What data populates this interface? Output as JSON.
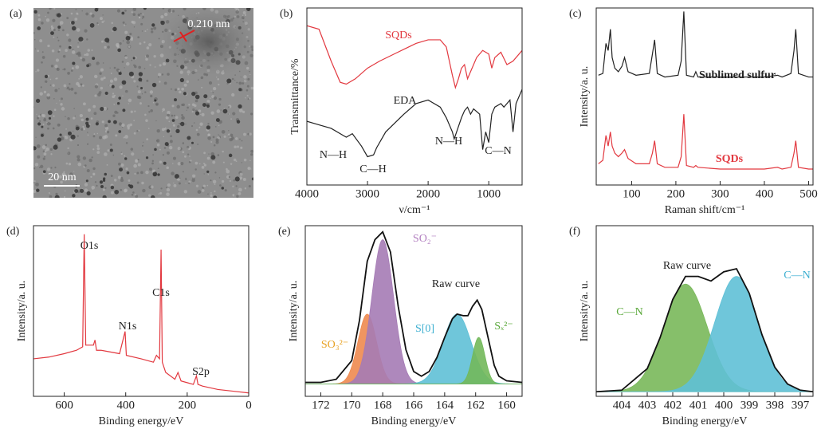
{
  "panel_a": {
    "panel": "(a)",
    "lattice": "0.210 nm",
    "scale_bar": "20 nm"
  },
  "chart_data": [
    {
      "type": "line",
      "panel": "(b)",
      "ylabel": "Transmittance/%",
      "xlabel": "ν/cm⁻¹",
      "xlim": [
        4000,
        450
      ],
      "xticks": [
        4000,
        3000,
        2000,
        1000
      ],
      "ylim": [
        0,
        100
      ],
      "series": [
        {
          "name": "SQDs",
          "color": "#e2383f",
          "x": [
            4000,
            3800,
            3600,
            3450,
            3350,
            3200,
            3000,
            2800,
            2500,
            2200,
            2000,
            1800,
            1700,
            1600,
            1550,
            1500,
            1450,
            1400,
            1350,
            1300,
            1200,
            1100,
            1000,
            950,
            900,
            800,
            700,
            600,
            450
          ],
          "values": [
            90,
            88,
            70,
            58,
            57,
            60,
            66,
            70,
            75,
            80,
            82,
            82,
            78,
            62,
            55,
            60,
            66,
            68,
            60,
            64,
            72,
            76,
            74,
            66,
            72,
            75,
            68,
            70,
            76
          ]
        },
        {
          "name": "EDA",
          "color": "#222222",
          "x": [
            4000,
            3800,
            3600,
            3400,
            3350,
            3250,
            3100,
            3000,
            2900,
            2850,
            2700,
            2400,
            2200,
            2000,
            1800,
            1700,
            1600,
            1570,
            1500,
            1450,
            1400,
            1350,
            1300,
            1250,
            1150,
            1100,
            1050,
            1000,
            950,
            900,
            800,
            750,
            650,
            600,
            550,
            450
          ],
          "values": [
            36,
            34,
            32,
            28,
            27,
            29,
            22,
            16,
            17,
            21,
            30,
            40,
            46,
            48,
            44,
            38,
            30,
            26,
            33,
            38,
            42,
            44,
            40,
            43,
            40,
            20,
            30,
            24,
            40,
            44,
            46,
            44,
            48,
            30,
            46,
            54
          ]
        }
      ],
      "annotations": [
        {
          "text": "N—H",
          "color": "#222222"
        },
        {
          "text": "C—H",
          "color": "#222222"
        },
        {
          "text": "N—H",
          "color": "#222222"
        },
        {
          "text": "C—N",
          "color": "#222222"
        }
      ]
    },
    {
      "type": "line",
      "panel": "(c)",
      "ylabel": "Intensity/a. u.",
      "xlabel": "Raman shift/cm⁻¹",
      "xlim": [
        20,
        510
      ],
      "xticks": [
        100,
        200,
        300,
        400,
        500
      ],
      "ylim": [
        0,
        100
      ],
      "series": [
        {
          "name": "Sublimed sulfur",
          "color": "#222222",
          "x": [
            25,
            35,
            42,
            47,
            52,
            56,
            62,
            70,
            78,
            84,
            92,
            110,
            140,
            147,
            152,
            158,
            175,
            205,
            212,
            218,
            224,
            240,
            245,
            250,
            300,
            400,
            430,
            440,
            460,
            467,
            471,
            477,
            500,
            510
          ],
          "values": [
            62,
            63,
            80,
            76,
            88,
            72,
            66,
            64,
            67,
            72,
            64,
            62,
            63,
            74,
            82,
            63,
            61,
            62,
            70,
            98,
            62,
            61,
            64,
            61,
            61,
            61,
            62,
            61,
            63,
            76,
            88,
            63,
            61,
            61
          ]
        },
        {
          "name": "SQDs",
          "color": "#e2383f",
          "x": [
            25,
            35,
            42,
            47,
            52,
            56,
            62,
            70,
            78,
            84,
            92,
            110,
            140,
            147,
            152,
            158,
            175,
            205,
            212,
            218,
            224,
            240,
            245,
            250,
            300,
            400,
            430,
            440,
            460,
            467,
            471,
            477,
            500,
            510
          ],
          "values": [
            12,
            14,
            28,
            22,
            30,
            22,
            18,
            16,
            18,
            20,
            15,
            12,
            12,
            18,
            25,
            12,
            10,
            10,
            16,
            40,
            11,
            10,
            11,
            10,
            9,
            9,
            10,
            9,
            10,
            18,
            25,
            10,
            9,
            9
          ]
        }
      ]
    },
    {
      "type": "line",
      "panel": "(d)",
      "ylabel": "Intensity/a. u.",
      "xlabel": "Binding energy/eV",
      "xlim": [
        700,
        0
      ],
      "xticks": [
        600,
        400,
        200,
        0
      ],
      "ylim": [
        0,
        100
      ],
      "series": [
        {
          "color": "#e2383f",
          "x": [
            700,
            650,
            600,
            560,
            540,
            535,
            530,
            520,
            505,
            500,
            495,
            480,
            450,
            420,
            402,
            398,
            350,
            310,
            300,
            290,
            285,
            281,
            270,
            240,
            230,
            220,
            200,
            180,
            170,
            165,
            150,
            100,
            50,
            0
          ],
          "values": [
            22,
            23,
            25,
            27,
            29,
            95,
            30,
            30,
            30,
            33,
            27,
            27,
            26,
            25,
            38,
            24,
            22,
            20,
            24,
            22,
            86,
            20,
            14,
            10,
            14,
            9,
            8,
            7,
            12,
            7,
            6,
            4,
            3,
            2
          ]
        }
      ],
      "annotations": [
        {
          "text": "O1s",
          "color": "#222222"
        },
        {
          "text": "N1s",
          "color": "#222222"
        },
        {
          "text": "C1s",
          "color": "#222222"
        },
        {
          "text": "S2p",
          "color": "#222222"
        }
      ]
    },
    {
      "type": "fit",
      "panel": "(e)",
      "ylabel": "Intensity/a. u.",
      "xlabel": "Binding energy/eV",
      "xlim": [
        173,
        159
      ],
      "xticks": [
        172,
        170,
        168,
        166,
        164,
        162,
        160
      ],
      "ylim": [
        -8,
        102
      ],
      "peaks": [
        {
          "center": 169,
          "height": 45,
          "width": 0.6,
          "color": "#ee8a4f"
        },
        {
          "center": 168,
          "height": 93,
          "width": 0.7,
          "color": "#a57bb5"
        },
        {
          "center": 163.2,
          "height": 45,
          "width": 0.9,
          "color": "#5fc0d6"
        },
        {
          "center": 161.8,
          "height": 30,
          "width": 0.4,
          "color": "#72b85a"
        }
      ],
      "series": [
        {
          "color": "#111111",
          "x": [
            173,
            172,
            171,
            170,
            169.5,
            169,
            168.5,
            168,
            167.5,
            167,
            166.5,
            166,
            165.5,
            165,
            164.5,
            164,
            163.5,
            163.2,
            162.8,
            162.5,
            162.2,
            161.9,
            161.6,
            161.2,
            160.8,
            160.5,
            160,
            159
          ],
          "values": [
            1,
            1,
            3,
            15,
            41,
            79,
            93,
            98,
            85,
            50,
            22,
            8,
            5,
            8,
            17,
            30,
            42,
            45,
            44,
            44,
            50,
            54,
            48,
            30,
            12,
            5,
            2,
            1
          ]
        }
      ],
      "annotations": [
        {
          "text": "SO₃²⁻",
          "color": "#e8a020"
        },
        {
          "text": "SO₂⁻",
          "color": "#b27fc0"
        },
        {
          "text": "Raw curve",
          "color": "#222222"
        },
        {
          "text": "S[0]",
          "color": "#3aaed0"
        },
        {
          "text": "Sₓ²⁻",
          "color": "#5aa83a"
        }
      ]
    },
    {
      "type": "fit",
      "panel": "(f)",
      "ylabel": "Intensity/a. u.",
      "xlabel": "Binding energy/eV",
      "xlim": [
        405,
        396.5
      ],
      "xticks": [
        404,
        403,
        402,
        401,
        400,
        399,
        398,
        397
      ],
      "ylim": [
        -3,
        108
      ],
      "peaks": [
        {
          "center": 401.5,
          "height": 70,
          "width": 0.85,
          "color": "#79b85a"
        },
        {
          "center": 399.5,
          "height": 75,
          "width": 0.85,
          "color": "#5fc0d6"
        }
      ],
      "series": [
        {
          "color": "#111111",
          "x": [
            405,
            404,
            403,
            402.5,
            402,
            401.5,
            401,
            400.5,
            400,
            399.5,
            399,
            398.5,
            398,
            397.5,
            397,
            396.5
          ],
          "values": [
            0,
            1,
            15,
            35,
            60,
            75,
            75,
            72,
            78,
            80,
            64,
            37,
            16,
            5,
            1,
            0
          ]
        }
      ],
      "annotations": [
        {
          "text": "Raw curve",
          "color": "#222222"
        },
        {
          "text": "C—N",
          "color": "#3aaed0"
        },
        {
          "text": "C—N",
          "color": "#5aa83a"
        }
      ]
    }
  ]
}
